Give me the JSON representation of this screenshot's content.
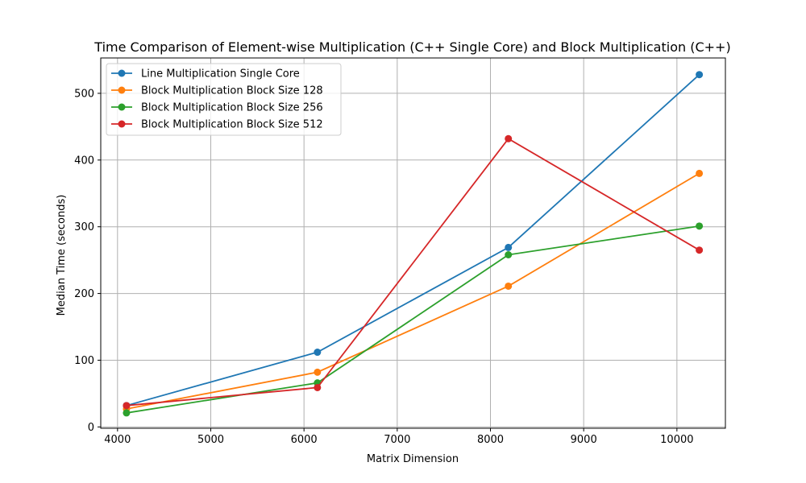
{
  "chart_data": {
    "type": "line",
    "title": "Time Comparison of Element-wise Multiplication (C++ Single Core) and Block Multiplication (C++)",
    "xlabel": "Matrix Dimension",
    "ylabel": "Median Time (seconds)",
    "xlim": [
      3820,
      10520
    ],
    "ylim": [
      -2,
      553
    ],
    "xticks": [
      4000,
      5000,
      6000,
      7000,
      8000,
      9000,
      10000
    ],
    "yticks": [
      0,
      100,
      200,
      300,
      400,
      500
    ],
    "grid": true,
    "legend_position": "upper-left",
    "x": [
      4096,
      6144,
      8192,
      10240
    ],
    "series": [
      {
        "name": "Line Multiplication Single Core",
        "color": "#1f77b4",
        "values": [
          32,
          112,
          269,
          528
        ]
      },
      {
        "name": "Block Multiplication Block Size 128",
        "color": "#ff7f0e",
        "values": [
          27,
          82,
          211,
          380
        ]
      },
      {
        "name": "Block Multiplication Block Size 256",
        "color": "#2ca02c",
        "values": [
          21,
          66,
          258,
          301
        ]
      },
      {
        "name": "Block Multiplication Block Size 512",
        "color": "#d62728",
        "values": [
          32,
          59,
          432,
          265
        ]
      }
    ]
  }
}
